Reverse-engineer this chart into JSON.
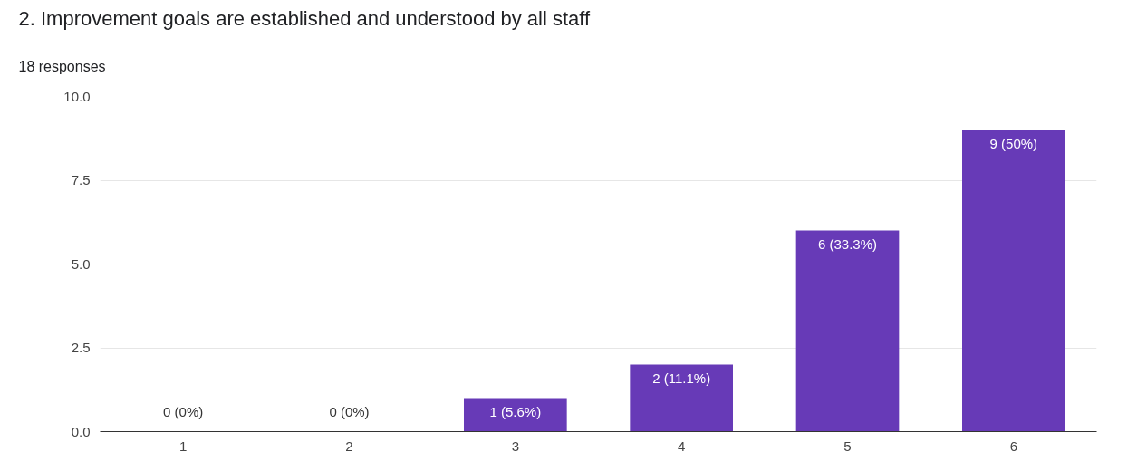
{
  "chart_data": {
    "type": "bar",
    "title": "2. Improvement goals are established and understood by all staff",
    "subtitle": "18 responses",
    "categories": [
      "1",
      "2",
      "3",
      "4",
      "5",
      "6"
    ],
    "values": [
      0,
      0,
      1,
      2,
      6,
      9
    ],
    "value_labels": [
      "0 (0%)",
      "0 (0%)",
      "1 (5.6%)",
      "2 (11.1%)",
      "6 (33.3%)",
      "9 (50%)"
    ],
    "color": "#673ab7",
    "ylim": [
      0,
      10
    ],
    "yticks": [
      {
        "value": 0,
        "label": "0.0"
      },
      {
        "value": 2.5,
        "label": "2.5"
      },
      {
        "value": 5,
        "label": "5.0"
      },
      {
        "value": 7.5,
        "label": "7.5"
      },
      {
        "value": 10,
        "label": "10.0"
      }
    ],
    "grid": "y"
  }
}
